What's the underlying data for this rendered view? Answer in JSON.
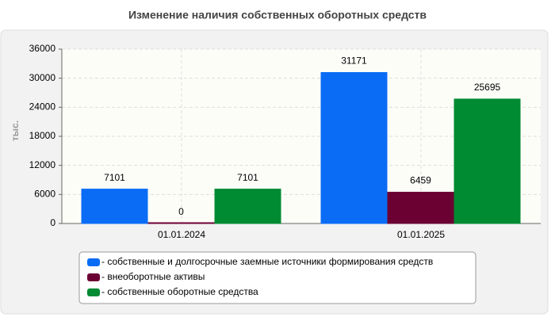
{
  "chart_data": {
    "type": "bar",
    "title": "Изменение наличия собственных оборотных средств",
    "y_label": "тыс.",
    "categories": [
      "01.01.2024",
      "01.01.2025"
    ],
    "series": [
      {
        "name": "- собственные и долгосрочные заемные источники формирования средств",
        "color": "#0a6cf5",
        "values": [
          7101,
          31171
        ]
      },
      {
        "name": "- внеоборотные активы",
        "color": "#6b0033",
        "values": [
          0,
          6459
        ]
      },
      {
        "name": "- собственные оборотные средства",
        "color": "#008a32",
        "values": [
          7101,
          25695
        ]
      }
    ],
    "ylim": [
      0,
      36000
    ],
    "yticks": [
      0,
      6000,
      12000,
      18000,
      24000,
      30000,
      36000
    ],
    "grid": true
  }
}
